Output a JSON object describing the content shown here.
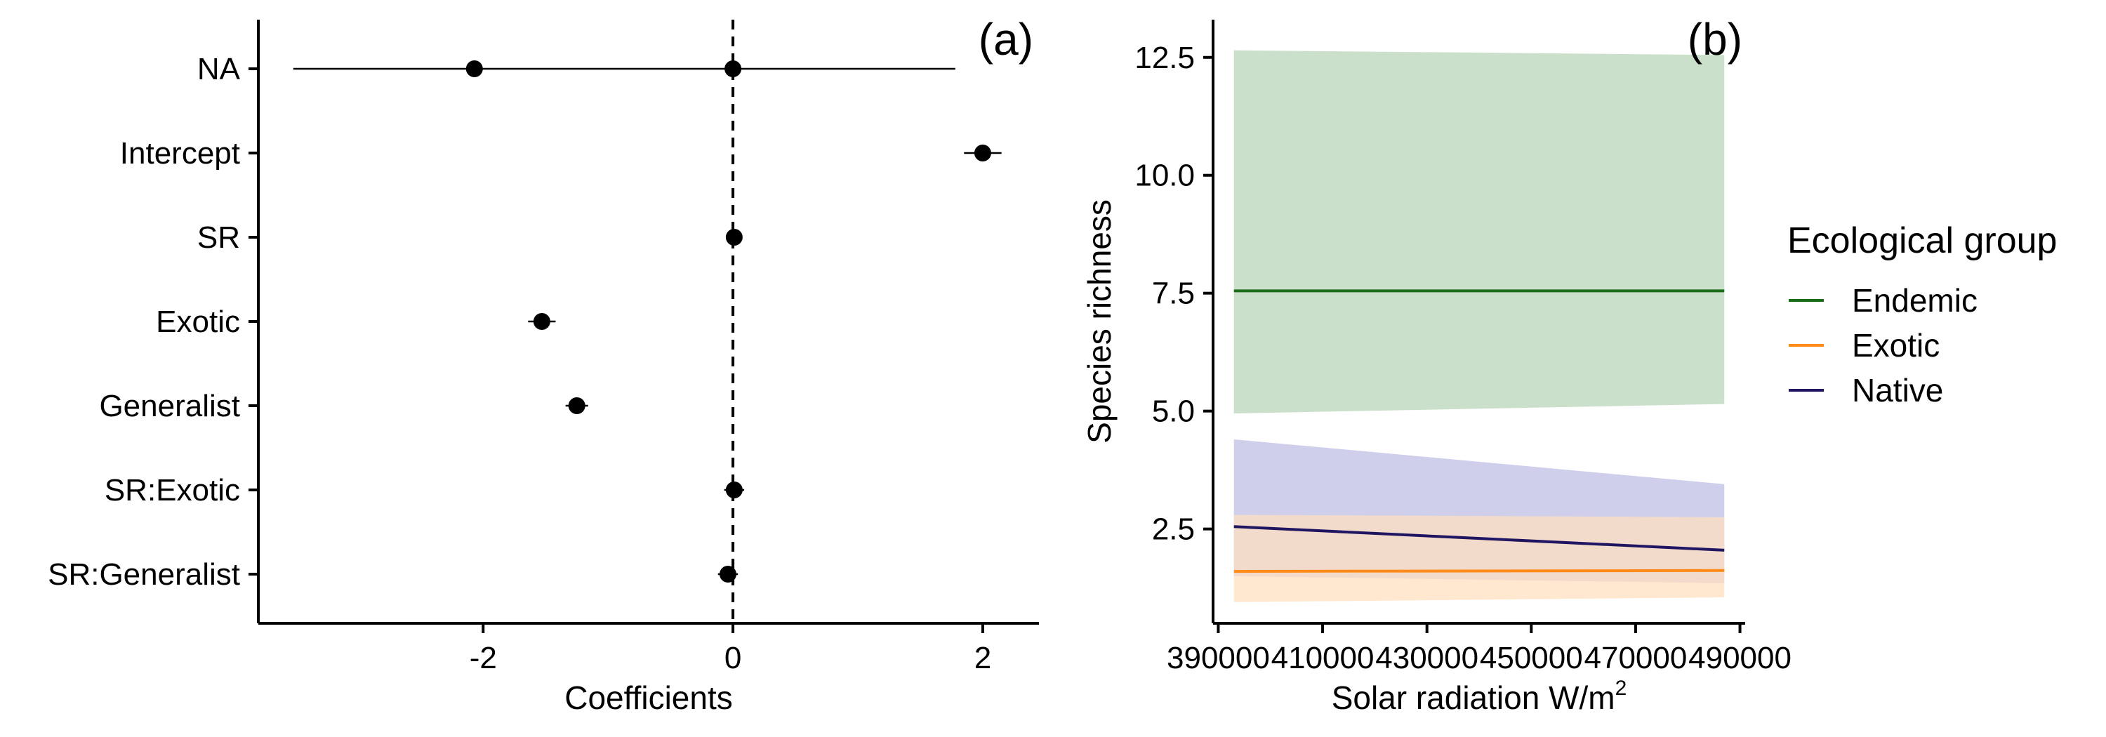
{
  "chart_data": [
    {
      "type": "scatter",
      "panel_tag": "(a)",
      "xlabel": "Coefficients",
      "ylabel": "",
      "xlim": [
        -3.8,
        2.45
      ],
      "xticks": [
        {
          "value": -2,
          "label": "-2"
        },
        {
          "value": 0,
          "label": "0"
        },
        {
          "value": 2,
          "label": "2"
        }
      ],
      "reference_line": {
        "x": 0,
        "style": "dashed"
      },
      "categories": [
        "NA",
        "Intercept",
        "SR",
        "Exotic",
        "Generalist",
        "SR:Exotic",
        "SR:Generalist"
      ],
      "points": [
        {
          "term": "NA",
          "values": [
            -2.07,
            0.0
          ],
          "ci": [
            -3.52,
            1.78
          ]
        },
        {
          "term": "Intercept",
          "values": [
            2.0
          ],
          "ci": [
            1.85,
            2.15
          ]
        },
        {
          "term": "SR",
          "values": [
            0.01
          ],
          "ci": [
            -0.02,
            0.04
          ]
        },
        {
          "term": "Exotic",
          "values": [
            -1.53
          ],
          "ci": [
            -1.64,
            -1.42
          ]
        },
        {
          "term": "Generalist",
          "values": [
            -1.25
          ],
          "ci": [
            -1.34,
            -1.16
          ]
        },
        {
          "term": "SR:Exotic",
          "values": [
            0.01
          ],
          "ci": [
            -0.07,
            0.09
          ]
        },
        {
          "term": "SR:Generalist",
          "values": [
            -0.04
          ],
          "ci": [
            -0.12,
            0.04
          ]
        }
      ]
    },
    {
      "type": "line",
      "panel_tag": "(b)",
      "xlabel": "Solar radiation W/m",
      "xlabel_superscript": "2",
      "ylabel": "Species richness",
      "xlim": [
        389000,
        491000
      ],
      "ylim": [
        0.5,
        13.3
      ],
      "xticks": [
        390000,
        410000,
        430000,
        450000,
        470000,
        490000
      ],
      "yticks": [
        {
          "value": 2.5,
          "label": "2.5"
        },
        {
          "value": 5.0,
          "label": "5.0"
        },
        {
          "value": 7.5,
          "label": "7.5"
        },
        {
          "value": 10.0,
          "label": "10.0"
        },
        {
          "value": 12.5,
          "label": "12.5"
        }
      ],
      "legend": {
        "title": "Ecological group",
        "position": "right"
      },
      "series": [
        {
          "name": "Endemic",
          "color": "#1a6b1a",
          "band_color": "#cbe0cb",
          "x": [
            393000,
            487000
          ],
          "values": [
            7.55,
            7.55
          ],
          "lower": [
            4.95,
            5.15
          ],
          "upper": [
            12.65,
            12.55
          ]
        },
        {
          "name": "Exotic",
          "color": "#ff8c1a",
          "band_color": "#ffdfbc",
          "x": [
            393000,
            487000
          ],
          "values": [
            1.6,
            1.62
          ],
          "lower": [
            0.95,
            1.05
          ],
          "upper": [
            2.8,
            2.75
          ]
        },
        {
          "name": "Native",
          "color": "#1f1560",
          "band_color": "#bdbde4",
          "x": [
            393000,
            487000
          ],
          "values": [
            2.55,
            2.05
          ],
          "lower": [
            1.5,
            1.35
          ],
          "upper": [
            4.4,
            3.45
          ]
        }
      ]
    }
  ]
}
